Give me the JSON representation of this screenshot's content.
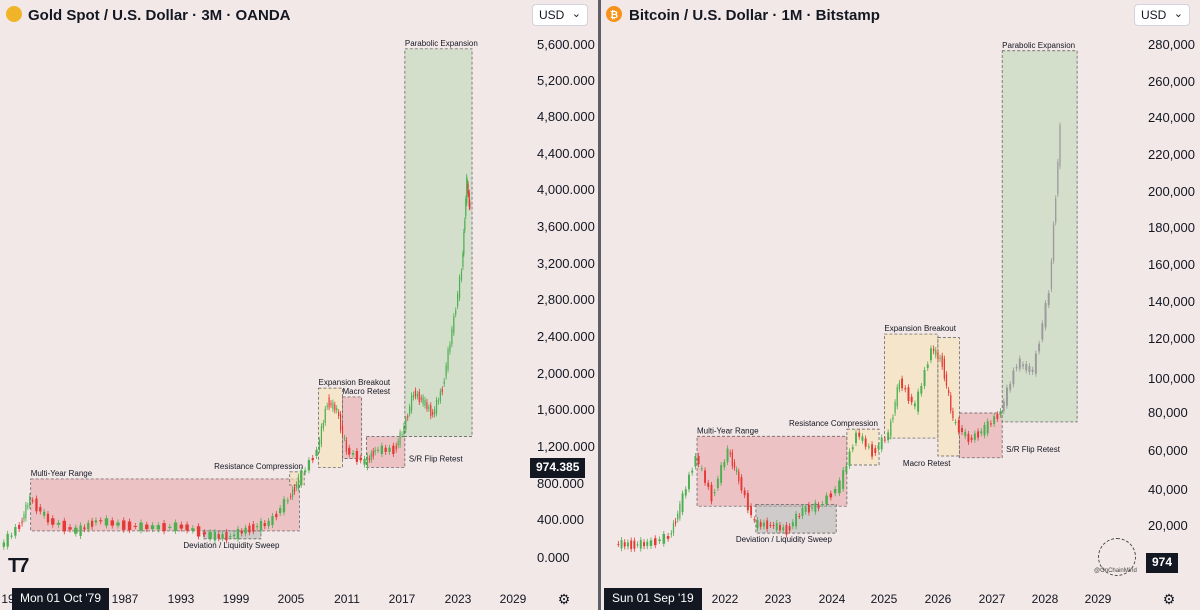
{
  "left": {
    "title": "Gold Spot / U.S. Dollar · 3M · OANDA",
    "icon": "gold-coin-icon",
    "currency": "USD",
    "date_chip": "Mon 01 Oct '79",
    "price_chip": "974.385",
    "gear_icon": "settings-gear-icon",
    "tv_logo": "T7"
  },
  "right": {
    "title": "Bitcoin / U.S. Dollar · 1M · Bitstamp",
    "icon": "bitcoin-icon",
    "currency": "USD",
    "date_chip": "Sun 01 Sep '19",
    "price_chip": "974",
    "gear_icon": "settings-gear-icon",
    "watermark": "@OnChainMind"
  },
  "chart_data": [
    {
      "type": "line",
      "title": "Gold Spot / U.S. Dollar · 3M · OANDA",
      "x_tick_labels": [
        "19",
        "1987",
        "1993",
        "1999",
        "2005",
        "2011",
        "2017",
        "2023",
        "2029"
      ],
      "y_tick_labels": [
        "5,600.000",
        "5,200.000",
        "4,800.000",
        "4,400.000",
        "4,000.000",
        "3,600.000",
        "3,200.000",
        "2,800.000",
        "2,400.000",
        "2,000.000",
        "1,600.000",
        "1,200.000",
        "800.000",
        "400.000",
        "0.000"
      ],
      "ylim": [
        0,
        5900
      ],
      "x": [
        1977,
        1979,
        1980,
        1982,
        1985,
        1987,
        1990,
        1993,
        1996,
        1999,
        2001,
        2003,
        2005,
        2007,
        2008,
        2010,
        2011,
        2012,
        2013,
        2015,
        2016,
        2018,
        2019,
        2020,
        2021,
        2022,
        2023,
        2024,
        2025,
        2025.5,
        2025.8
      ],
      "y": [
        150,
        400,
        700,
        450,
        320,
        450,
        390,
        370,
        380,
        270,
        270,
        360,
        420,
        700,
        900,
        1250,
        1800,
        1700,
        1250,
        1100,
        1250,
        1250,
        1500,
        1900,
        1800,
        1650,
        1950,
        2600,
        3300,
        4300,
        4000
      ],
      "zones": [
        {
          "label": "Multi-Year Range",
          "x0": 1980,
          "x1": 2008,
          "y0": 330,
          "y1": 920,
          "color": "#e8a3a8"
        },
        {
          "label": "Deviation / Liquidity Sweep",
          "x0": 1998,
          "x1": 2004,
          "y0": 240,
          "y1": 330,
          "color": "#b3b3b3"
        },
        {
          "label": "Resistance Compression",
          "x0": 2007,
          "x1": 2008.5,
          "y0": 850,
          "y1": 1000,
          "color": "#f5e3b3"
        },
        {
          "label": "Expansion Breakout",
          "x0": 2010,
          "x1": 2012.5,
          "y0": 1050,
          "y1": 1950,
          "color": "#f5e3b3"
        },
        {
          "label": "Macro Retest",
          "x0": 2012.5,
          "x1": 2014.5,
          "y0": 1150,
          "y1": 1850,
          "color": "#e8a3a8"
        },
        {
          "label": "S/R Flip Retest",
          "x0": 2015,
          "x1": 2019,
          "y0": 1050,
          "y1": 1400,
          "color": "#e8a3a8"
        },
        {
          "label": "Parabolic Expansion",
          "x0": 2019,
          "x1": 2026,
          "y0": 1400,
          "y1": 5800,
          "color": "#b8d6b3"
        }
      ]
    },
    {
      "type": "line",
      "title": "Bitcoin / U.S. Dollar · 1M · Bitstamp",
      "x_tick_labels": [
        "2022",
        "2023",
        "2024",
        "2025",
        "2026",
        "2027",
        "2028",
        "2029"
      ],
      "y_tick_labels": [
        "280,000",
        "260,000",
        "240,000",
        "220,000",
        "200,000",
        "180,000",
        "160,000",
        "140,000",
        "120,000",
        "100,000",
        "80,000",
        "60,000",
        "40,000",
        "20,000"
      ],
      "ylim": [
        0,
        290000
      ],
      "x": [
        2019.7,
        2020.0,
        2020.3,
        2020.7,
        2020.9,
        2021.2,
        2021.5,
        2021.8,
        2022.0,
        2022.3,
        2022.6,
        2022.9,
        2023.2,
        2023.5,
        2023.9,
        2024.2,
        2024.5,
        2024.8,
        2025.0,
        2025.3,
        2025.6,
        2025.8,
        2026.0,
        2026.3,
        2026.6,
        2026.9,
        2027.2,
        2027.5,
        2027.8,
        2028.0
      ],
      "y": [
        9000,
        8500,
        9000,
        13000,
        29000,
        58000,
        35000,
        61000,
        45000,
        20000,
        19500,
        16500,
        28000,
        30000,
        42000,
        71000,
        60000,
        70000,
        100000,
        85000,
        118000,
        110000,
        78000,
        67000,
        73000,
        83000,
        110000,
        105000,
        150000,
        240000
      ],
      "forecast_from_x": 2026.9,
      "zones": [
        {
          "label": "Multi-Year Range",
          "x0": 2021.2,
          "x1": 2024.0,
          "y0": 30000,
          "y1": 69000,
          "color": "#e8a3a8"
        },
        {
          "label": "Deviation / Liquidity Sweep",
          "x0": 2022.3,
          "x1": 2023.8,
          "y0": 15000,
          "y1": 31000,
          "color": "#b3b3b3"
        },
        {
          "label": "Resistance Compression",
          "x0": 2024.0,
          "x1": 2024.6,
          "y0": 53000,
          "y1": 73000,
          "color": "#f5e3b3"
        },
        {
          "label": "Expansion Breakout",
          "x0": 2024.7,
          "x1": 2025.7,
          "y0": 68000,
          "y1": 126000,
          "color": "#f5e3b3"
        },
        {
          "label": "Macro Retest",
          "x0": 2025.7,
          "x1": 2026.1,
          "y0": 58000,
          "y1": 124000,
          "color": "#f5e3b3"
        },
        {
          "label": "S/R Flip Retest",
          "x0": 2026.1,
          "x1": 2026.9,
          "y0": 57000,
          "y1": 82000,
          "color": "#e8a3a8"
        },
        {
          "label": "Parabolic Expansion",
          "x0": 2026.9,
          "x1": 2028.3,
          "y0": 77000,
          "y1": 284000,
          "color": "#b8d6b3"
        }
      ]
    }
  ]
}
